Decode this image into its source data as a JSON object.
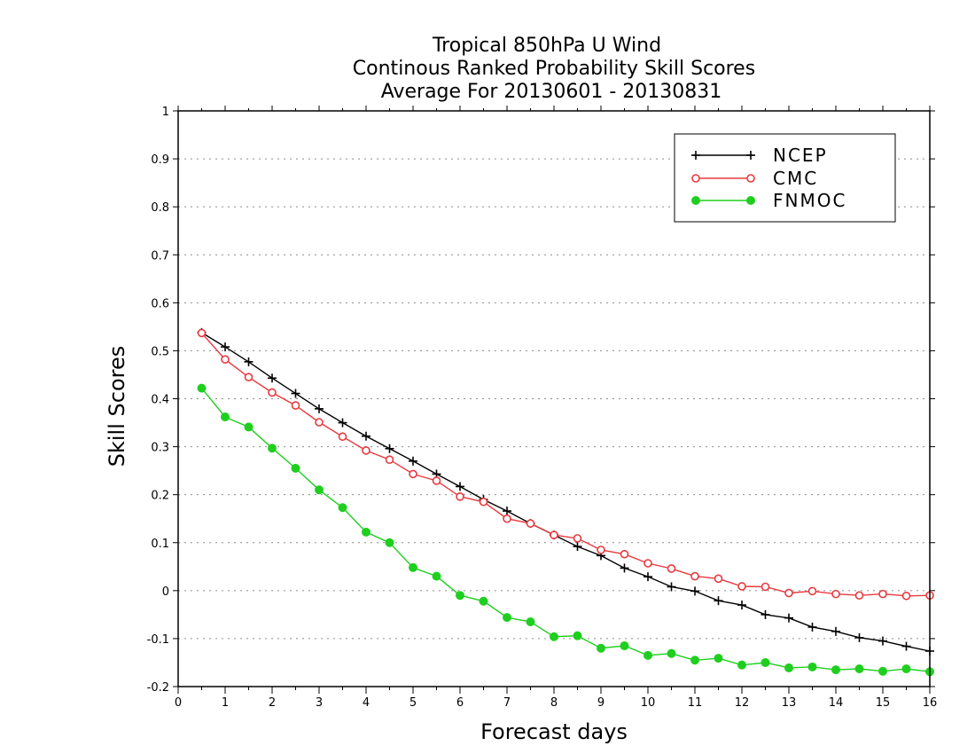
{
  "chart_data": {
    "type": "line",
    "title": [
      "Tropical 850hPa U Wind",
      "Continous Ranked Probability Skill Scores",
      "Average For 20130601 - 20130831"
    ],
    "xlabel": "Forecast days",
    "ylabel": "Skill Scores",
    "xlim": [
      0,
      16
    ],
    "ylim": [
      -0.2,
      1
    ],
    "xticks": [
      0,
      1,
      2,
      3,
      4,
      5,
      6,
      7,
      8,
      9,
      10,
      11,
      12,
      13,
      14,
      15,
      16
    ],
    "yticks": [
      -0.2,
      -0.1,
      0,
      0.1,
      0.2,
      0.3,
      0.4,
      0.5,
      0.6,
      0.7,
      0.8,
      0.9,
      1
    ],
    "ytick_labels": [
      "-0.2",
      "-0.1",
      "0",
      "0.1",
      "0.2",
      "0.3",
      "0.4",
      "0.5",
      "0.6",
      "0.7",
      "0.8",
      "0.9",
      "1"
    ],
    "grid": "horizontal dotted",
    "legend_position": "top-right",
    "x": [
      0.5,
      1,
      1.5,
      2,
      2.5,
      3,
      3.5,
      4,
      4.5,
      5,
      5.5,
      6,
      6.5,
      7,
      7.5,
      8,
      8.5,
      9,
      9.5,
      10,
      10.5,
      11,
      11.5,
      12,
      12.5,
      13,
      13.5,
      14,
      14.5,
      15,
      15.5,
      16
    ],
    "series": [
      {
        "name": "NCEP",
        "color": "#000000",
        "marker": "plus",
        "values": [
          0.538,
          0.508,
          0.477,
          0.443,
          0.411,
          0.379,
          0.35,
          0.322,
          0.296,
          0.27,
          0.243,
          0.217,
          0.19,
          0.166,
          0.14,
          0.116,
          0.092,
          0.073,
          0.047,
          0.029,
          0.008,
          -0.001,
          -0.021,
          -0.03,
          -0.05,
          -0.057,
          -0.076,
          -0.085,
          -0.098,
          -0.105,
          -0.116,
          -0.126
        ]
      },
      {
        "name": "CMC",
        "color": "#e8393f",
        "marker": "open-circle",
        "values": [
          0.537,
          0.482,
          0.445,
          0.413,
          0.386,
          0.351,
          0.321,
          0.292,
          0.273,
          0.243,
          0.229,
          0.196,
          0.185,
          0.15,
          0.14,
          0.116,
          0.109,
          0.085,
          0.076,
          0.057,
          0.046,
          0.03,
          0.025,
          0.009,
          0.008,
          -0.005,
          -0.001,
          -0.007,
          -0.01,
          -0.007,
          -0.011,
          -0.01
        ]
      },
      {
        "name": "FNMOC",
        "color": "#1fcf1f",
        "marker": "filled-circle",
        "values": [
          0.422,
          0.362,
          0.341,
          0.297,
          0.255,
          0.21,
          0.173,
          0.122,
          0.1,
          0.048,
          0.03,
          -0.01,
          -0.022,
          -0.056,
          -0.065,
          -0.096,
          -0.094,
          -0.12,
          -0.115,
          -0.135,
          -0.131,
          -0.145,
          -0.141,
          -0.155,
          -0.15,
          -0.161,
          -0.159,
          -0.165,
          -0.163,
          -0.168,
          -0.163,
          -0.169
        ]
      }
    ]
  }
}
